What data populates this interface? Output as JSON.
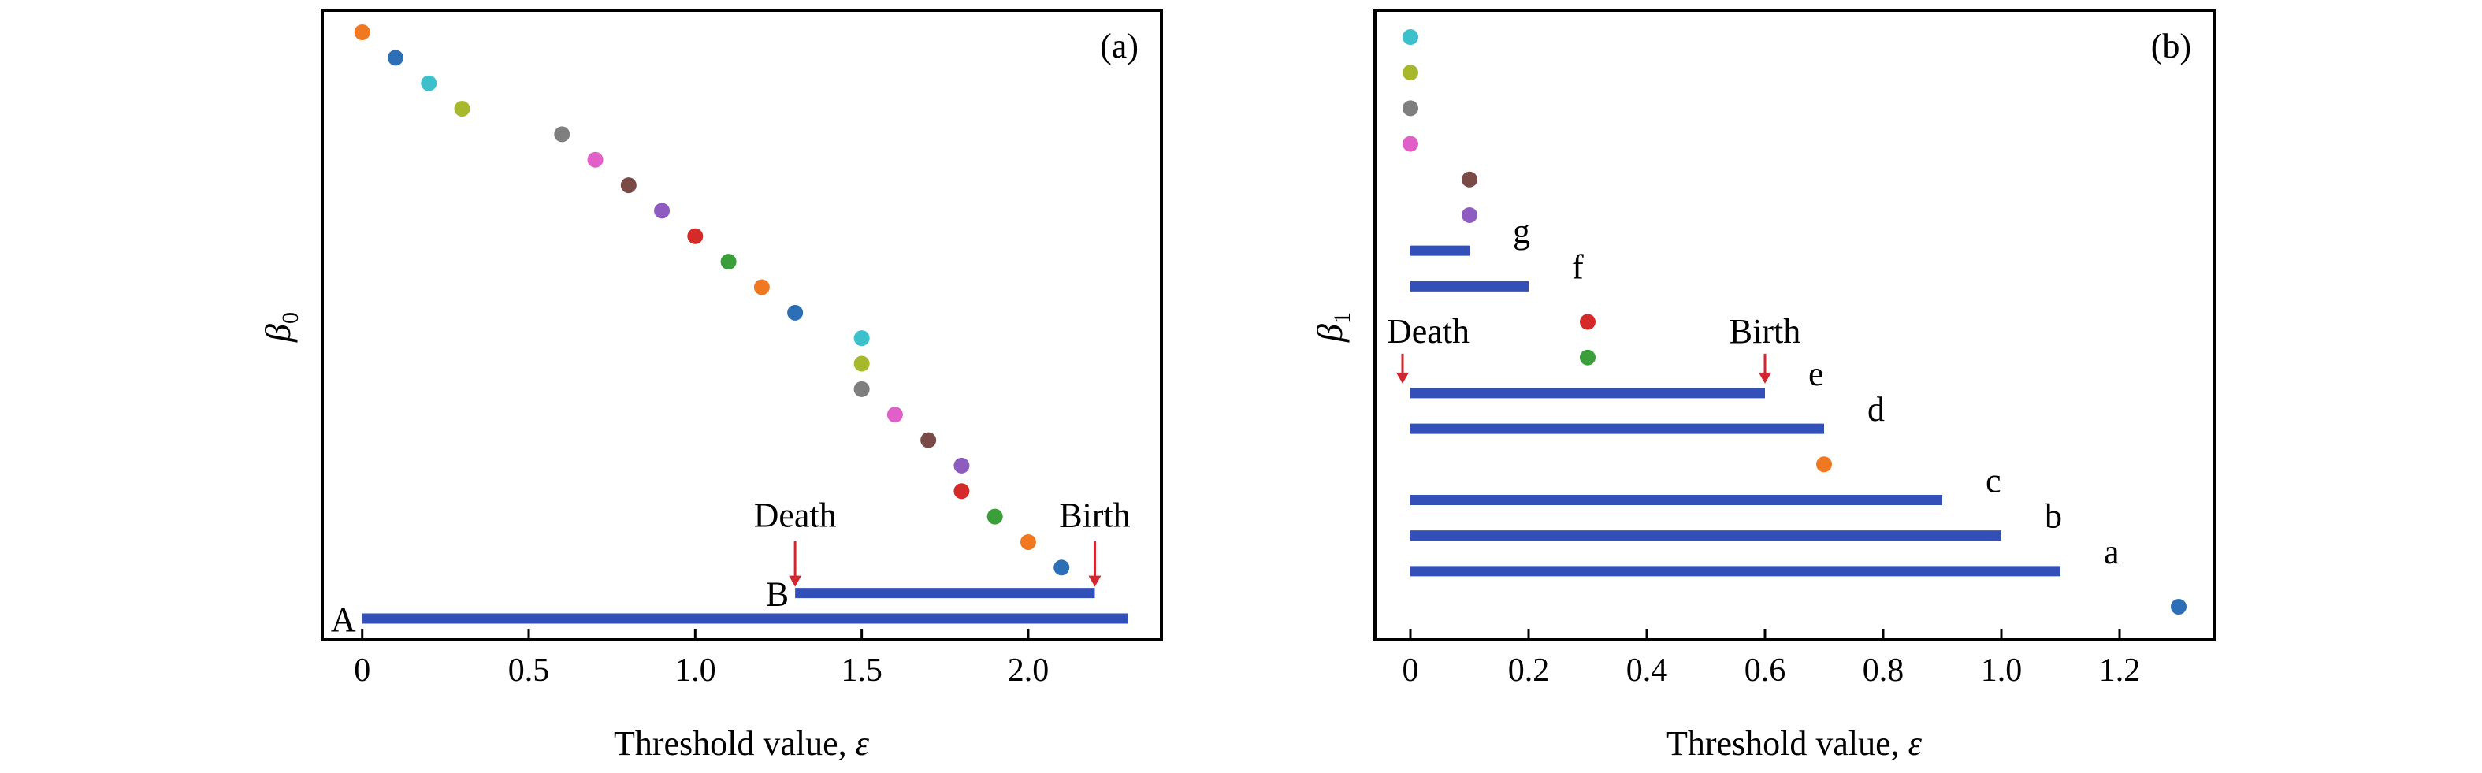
{
  "chart_data": [
    {
      "type": "scatter",
      "panel_label": "(a)",
      "xlabel": "Threshold value, ",
      "xlabel_symbol": "ε",
      "ylabel_symbol": "β",
      "ylabel_subscript": "0",
      "xlim": [
        -0.12,
        2.4
      ],
      "xticks": [
        {
          "value": 0,
          "label": "0"
        },
        {
          "value": 0.5,
          "label": "0.5"
        },
        {
          "value": 1.0,
          "label": "1.0"
        },
        {
          "value": 1.5,
          "label": "1.5"
        },
        {
          "value": 2.0,
          "label": "2.0"
        }
      ],
      "points": [
        {
          "x": 0.0,
          "row": 0,
          "color": "#f07820"
        },
        {
          "x": 0.1,
          "row": 1,
          "color": "#2c6fb6"
        },
        {
          "x": 0.2,
          "row": 2,
          "color": "#3bc0cc"
        },
        {
          "x": 0.3,
          "row": 3,
          "color": "#a8b82c"
        },
        {
          "x": 0.6,
          "row": 4,
          "color": "#7f7f7f"
        },
        {
          "x": 0.7,
          "row": 5,
          "color": "#e060c8"
        },
        {
          "x": 0.8,
          "row": 6,
          "color": "#7a4a46"
        },
        {
          "x": 0.9,
          "row": 7,
          "color": "#8e5cc0"
        },
        {
          "x": 1.0,
          "row": 8,
          "color": "#d42a2a"
        },
        {
          "x": 1.1,
          "row": 9,
          "color": "#3a9e3a"
        },
        {
          "x": 1.2,
          "row": 10,
          "color": "#f07820"
        },
        {
          "x": 1.3,
          "row": 11,
          "color": "#2c6fb6"
        },
        {
          "x": 1.5,
          "row": 12,
          "color": "#3bc0cc"
        },
        {
          "x": 1.5,
          "row": 13,
          "color": "#a8b82c"
        },
        {
          "x": 1.5,
          "row": 14,
          "color": "#7f7f7f"
        },
        {
          "x": 1.6,
          "row": 15,
          "color": "#e060c8"
        },
        {
          "x": 1.7,
          "row": 16,
          "color": "#7a4a46"
        },
        {
          "x": 1.8,
          "row": 17,
          "color": "#8e5cc0"
        },
        {
          "x": 1.8,
          "row": 18,
          "color": "#d42a2a"
        },
        {
          "x": 1.9,
          "row": 19,
          "color": "#3a9e3a"
        },
        {
          "x": 2.0,
          "row": 20,
          "color": "#f07820"
        },
        {
          "x": 2.1,
          "row": 21,
          "color": "#2c6fb6"
        }
      ],
      "bars": [
        {
          "label": "B",
          "start": 1.3,
          "end": 2.2,
          "row": 22
        },
        {
          "label": "A",
          "start": 0.0,
          "end": 2.3,
          "row": 23
        }
      ],
      "rows_total": 24,
      "annotations": {
        "death_label": "Death",
        "death_x": 1.3,
        "birth_label": "Birth",
        "birth_x": 2.2
      },
      "bar_color": "#3350b8"
    },
    {
      "type": "scatter",
      "panel_label": "(b)",
      "xlabel": "Threshold value, ",
      "xlabel_symbol": "ε",
      "ylabel_symbol": "β",
      "ylabel_subscript": "1",
      "xlim": [
        -0.06,
        1.36
      ],
      "xticks": [
        {
          "value": 0,
          "label": "0"
        },
        {
          "value": 0.2,
          "label": "0.2"
        },
        {
          "value": 0.4,
          "label": "0.4"
        },
        {
          "value": 0.6,
          "label": "0.6"
        },
        {
          "value": 0.8,
          "label": "0.8"
        },
        {
          "value": 1.0,
          "label": "1.0"
        },
        {
          "value": 1.2,
          "label": "1.2"
        }
      ],
      "points": [
        {
          "x": 0.0,
          "row": 0,
          "color": "#3bc0cc"
        },
        {
          "x": 0.0,
          "row": 1,
          "color": "#a8b82c"
        },
        {
          "x": 0.0,
          "row": 2,
          "color": "#7f7f7f"
        },
        {
          "x": 0.0,
          "row": 3,
          "color": "#e060c8"
        },
        {
          "x": 0.1,
          "row": 4,
          "color": "#7a4a46"
        },
        {
          "x": 0.1,
          "row": 5,
          "color": "#8e5cc0"
        },
        {
          "x": 0.3,
          "row": 8,
          "color": "#d42a2a"
        },
        {
          "x": 0.3,
          "row": 9,
          "color": "#3a9e3a"
        },
        {
          "x": 0.7,
          "row": 12,
          "color": "#f07820"
        },
        {
          "x": 1.3,
          "row": 16,
          "color": "#2c6fb6"
        }
      ],
      "bars": [
        {
          "label": "g",
          "start": 0.0,
          "end": 0.1,
          "row": 6
        },
        {
          "label": "f",
          "start": 0.0,
          "end": 0.2,
          "row": 7
        },
        {
          "label": "e",
          "start": 0.0,
          "end": 0.6,
          "row": 10
        },
        {
          "label": "d",
          "start": 0.0,
          "end": 0.7,
          "row": 11
        },
        {
          "label": "c",
          "start": 0.0,
          "end": 0.9,
          "row": 13
        },
        {
          "label": "b",
          "start": 0.0,
          "end": 1.0,
          "row": 14
        },
        {
          "label": "a",
          "start": 0.0,
          "end": 1.1,
          "row": 15
        }
      ],
      "rows_total": 17,
      "annotations": {
        "death_label": "Death",
        "death_x": 0.0,
        "birth_label": "Birth",
        "birth_x": 0.6
      },
      "bar_color": "#3350b8"
    }
  ]
}
